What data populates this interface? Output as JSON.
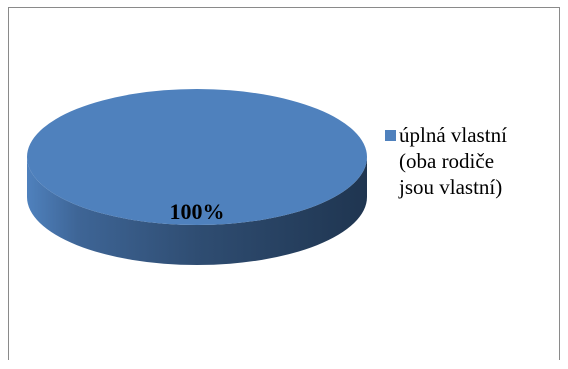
{
  "chart_data": {
    "type": "pie",
    "style": "3d",
    "slices": [
      {
        "label": "úplná vlastní (oba rodiče jsou vlastní)",
        "value": 100,
        "data_label": "100%",
        "color": "#4f81bd"
      }
    ],
    "legend_position": "right"
  },
  "legend": {
    "items": [
      {
        "text": "úplná vlastní\n(oba rodiče\njsou vlastní)",
        "color": "#4f81bd"
      }
    ]
  }
}
